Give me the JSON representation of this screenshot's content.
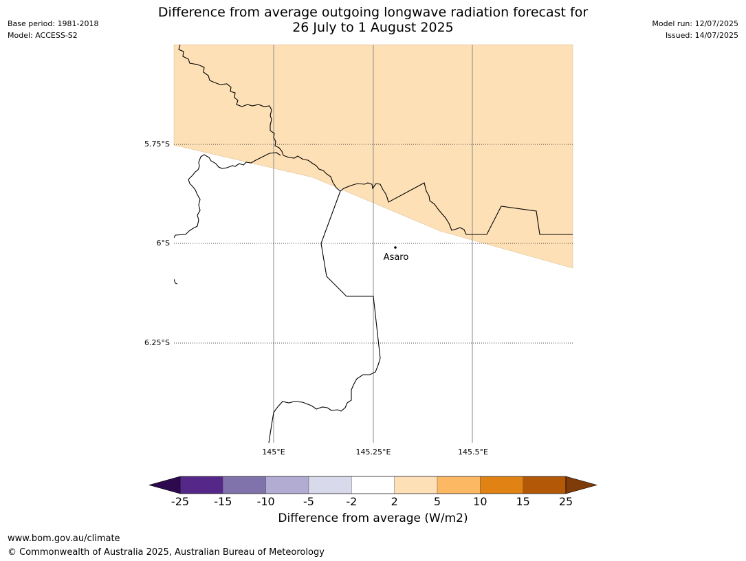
{
  "header": {
    "base_period": "Base period: 1981-2018",
    "model": "Model: ACCESS-S2",
    "model_run": "Model run: 12/07/2025",
    "issued": "Issued: 14/07/2025",
    "title_line1": "Difference from average outgoing longwave radiation forecast for",
    "title_line2": "26 July to 1 August 2025"
  },
  "map": {
    "lat_labels": [
      "5.75°S",
      "6°S",
      "6.25°S"
    ],
    "lon_labels": [
      "145°E",
      "145.25°E",
      "145.5°E"
    ],
    "place": "Asaro",
    "forecast_category": "2 to 5",
    "forecast_color": "#fde0b6"
  },
  "colorbar": {
    "title": "Difference from average (W/m2)",
    "ticks": [
      "-25",
      "-15",
      "-10",
      "-5",
      "-2",
      "2",
      "5",
      "10",
      "15",
      "25"
    ],
    "below_color": "#2d0a4e",
    "above_color": "#7f3b08",
    "colors": [
      "#542788",
      "#8073ac",
      "#b2abd2",
      "#d8daeb",
      "#ffffff",
      "#fee0b6",
      "#fdb863",
      "#e08214",
      "#b35806"
    ]
  },
  "footer": {
    "url": "www.bom.gov.au/climate",
    "copyright": "© Commonwealth of Australia 2025, Australian Bureau of Meteorology"
  }
}
